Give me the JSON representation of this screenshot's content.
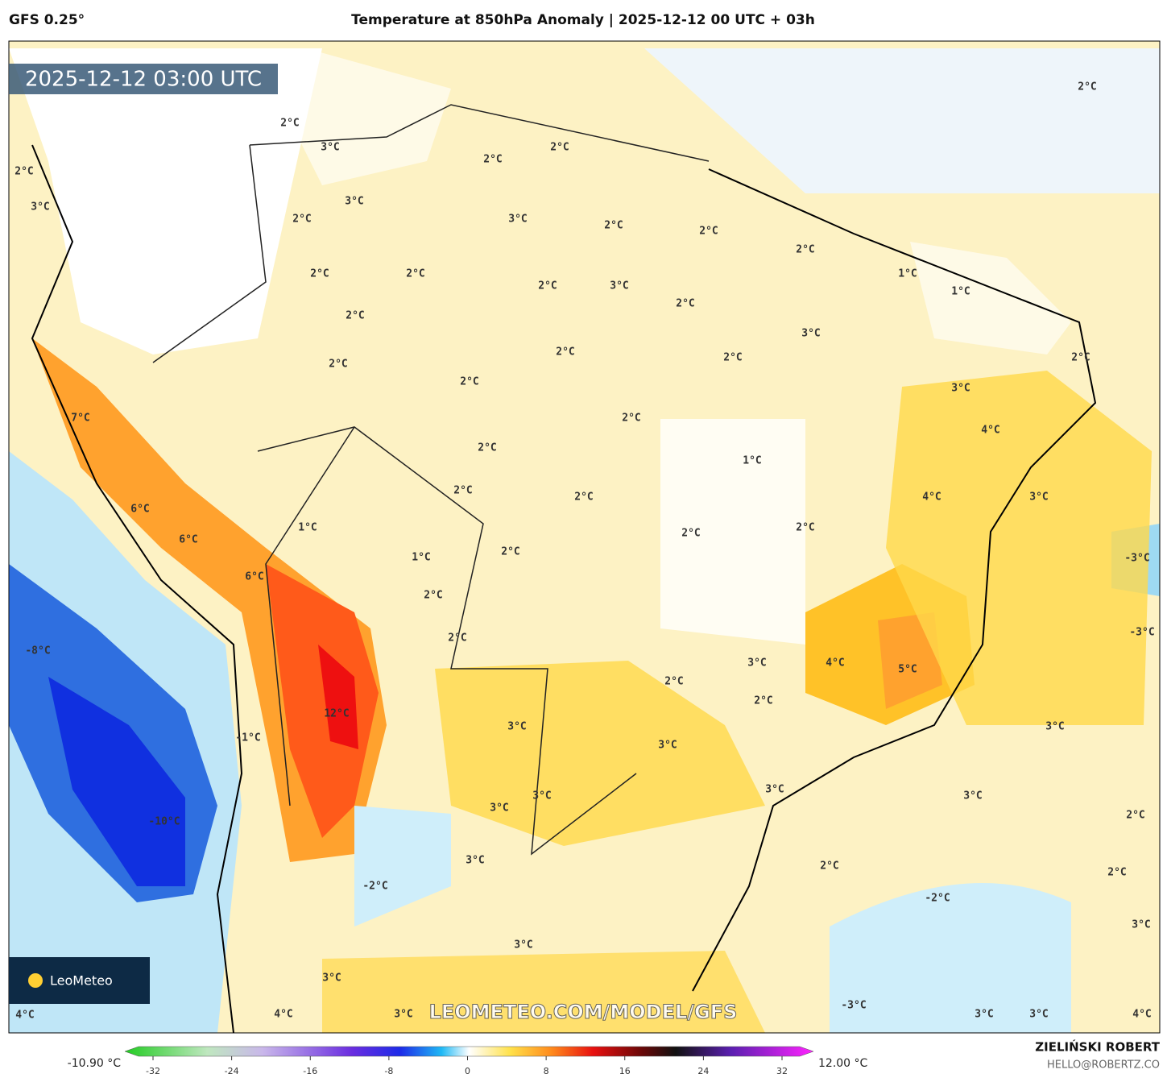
{
  "header": {
    "model": "GFS 0.25°",
    "title": "Temperature at 850hPa Anomaly | 2025-12-12 00 UTC + 03h"
  },
  "timestamp": "2025-12-12 03:00 UTC",
  "logo": "LeoMeteo",
  "watermark": "LEOMETEO.COM/MODEL/GFS",
  "labels": [
    "2°C",
    "3°C",
    "2°C",
    "3°C",
    "3°C",
    "2°C",
    "2°C",
    "2°C",
    "3°C",
    "2°C",
    "2°C",
    "2°C",
    "1°C",
    "1°C",
    "2°C",
    "2°C",
    "2°C",
    "2°C",
    "3°C",
    "2°C",
    "2°C",
    "3°C",
    "2°C",
    "2°C",
    "2°C",
    "2°C",
    "2°C",
    "3°C",
    "7°C",
    "2°C",
    "4°C",
    "2°C",
    "1°C",
    "2°C",
    "2°C",
    "4°C",
    "3°C",
    "6°C",
    "1°C",
    "2°C",
    "2°C",
    "6°C",
    "2°C",
    "1°C",
    "-3°C",
    "6°C",
    "2°C",
    "-8°C",
    "2°C",
    "-3°C",
    "3°C",
    "4°C",
    "5°C",
    "2°C",
    "2°C",
    "12°C",
    "3°C",
    "3°C",
    "-1°C",
    "3°C",
    "3°C",
    "3°C",
    "3°C",
    "3°C",
    "2°C",
    "-10°C",
    "3°C",
    "2°C",
    "2°C",
    "-2°C",
    "-2°C",
    "3°C",
    "3°C",
    "3°C",
    "-3°C",
    "4°C",
    "4°C",
    "3°C",
    "3°C",
    "3°C",
    "4°C"
  ],
  "colorbar": {
    "min_label": "-10.90 °C",
    "max_label": "12.00 °C",
    "ticks": [
      -32,
      -24,
      -16,
      -8,
      0,
      8,
      16,
      24,
      32
    ]
  },
  "credit": {
    "name": "ZIELIŃSKI ROBERT",
    "email": "HELLO@ROBERTZ.CO"
  }
}
